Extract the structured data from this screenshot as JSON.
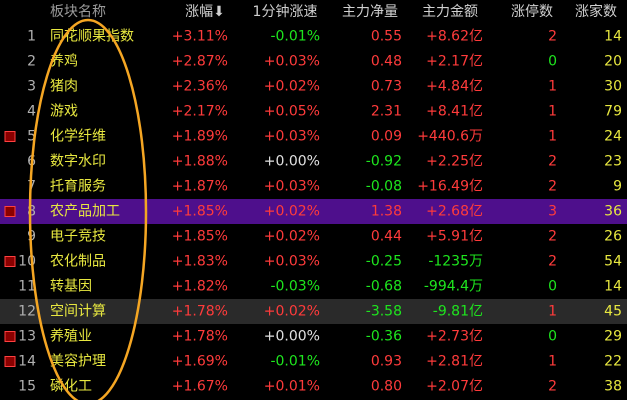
{
  "header": {
    "columns": [
      "板块名称",
      "涨幅⬇",
      "1分钟涨速",
      "主力净量",
      "主力金额",
      "涨停数",
      "涨家数"
    ]
  },
  "table": {
    "rows": [
      [
        "1",
        "同花顺果指数",
        "+3.11%",
        "-0.01%",
        "0.55",
        "+8.62亿",
        "2",
        "14"
      ],
      [
        "2",
        "养鸡",
        "+2.87%",
        "+0.03%",
        "0.48",
        "+2.17亿",
        "0",
        "20"
      ],
      [
        "3",
        "猪肉",
        "+2.36%",
        "+0.02%",
        "0.73",
        "+4.84亿",
        "1",
        "30"
      ],
      [
        "4",
        "游戏",
        "+2.17%",
        "+0.05%",
        "2.31",
        "+8.41亿",
        "1",
        "79"
      ],
      [
        "5",
        "化学纤维",
        "+1.89%",
        "+0.03%",
        "0.09",
        "+440.6万",
        "1",
        "24"
      ],
      [
        "6",
        "数字水印",
        "+1.88%",
        "+0.00%",
        "-0.92",
        "+2.25亿",
        "2",
        "23"
      ],
      [
        "7",
        "托育服务",
        "+1.87%",
        "+0.03%",
        "-0.08",
        "+16.49亿",
        "2",
        "9"
      ],
      [
        "8",
        "农产品加工",
        "+1.85%",
        "+0.02%",
        "1.38",
        "+2.68亿",
        "3",
        "36"
      ],
      [
        "9",
        "电子竞技",
        "+1.85%",
        "+0.02%",
        "0.44",
        "+5.91亿",
        "2",
        "26"
      ],
      [
        "10",
        "农化制品",
        "+1.83%",
        "+0.03%",
        "-0.25",
        "-1235万",
        "2",
        "54"
      ],
      [
        "11",
        "转基因",
        "+1.82%",
        "-0.03%",
        "-0.68",
        "-994.4万",
        "0",
        "14"
      ],
      [
        "12",
        "空间计算",
        "+1.78%",
        "+0.02%",
        "-3.58",
        "-9.81亿",
        "1",
        "45"
      ],
      [
        "13",
        "养殖业",
        "+1.78%",
        "+0.00%",
        "-0.36",
        "+2.73亿",
        "0",
        "29"
      ],
      [
        "14",
        "美容护理",
        "+1.69%",
        "-0.01%",
        "0.93",
        "+2.81亿",
        "1",
        "22"
      ],
      [
        "15",
        "磷化工",
        "+1.67%",
        "+0.01%",
        "0.80",
        "+2.07亿",
        "2",
        "38"
      ]
    ]
  }
}
